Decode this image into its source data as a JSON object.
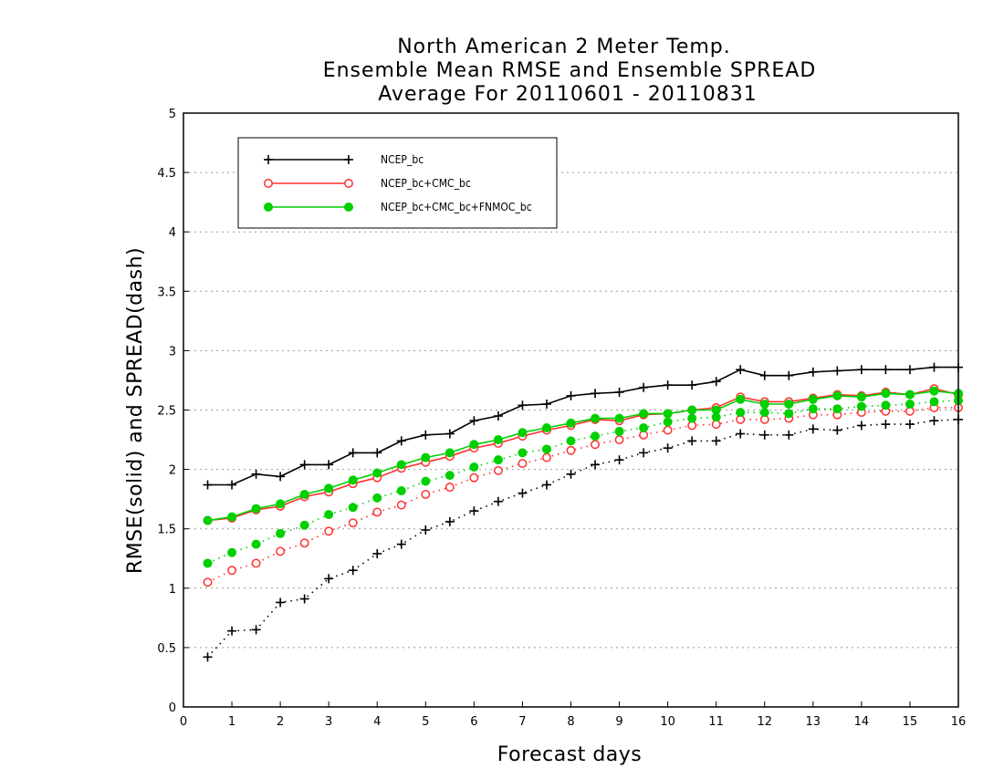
{
  "chart_data": {
    "type": "line",
    "title": [
      "North American 2 Meter Temp.",
      "Ensemble Mean RMSE and Ensemble SPREAD",
      "Average For 20110601 - 20110831"
    ],
    "xlabel": "Forecast days",
    "ylabel": "RMSE(solid) and SPREAD(dash)",
    "xlim": [
      0,
      16
    ],
    "ylim": [
      0,
      5
    ],
    "x_ticks": [
      0,
      1,
      2,
      3,
      4,
      5,
      6,
      7,
      8,
      9,
      10,
      11,
      12,
      13,
      14,
      15,
      16
    ],
    "x_tick_labels": [
      "0",
      "1",
      "2",
      "3",
      "4",
      "5",
      "6",
      "7",
      "8",
      "9",
      "10",
      "11",
      "12",
      "13",
      "14",
      "15",
      "16"
    ],
    "y_ticks": [
      0,
      0.5,
      1,
      1.5,
      2,
      2.5,
      3,
      3.5,
      4,
      4.5,
      5
    ],
    "y_tick_labels": [
      "0",
      "0.5",
      "1",
      "1.5",
      "2",
      "2.5",
      "3",
      "3.5",
      "4",
      "4.5",
      "5"
    ],
    "grid": "horizontal dotted",
    "legend_position": "top-left",
    "x": [
      0.5,
      1,
      1.5,
      2,
      2.5,
      3,
      3.5,
      4,
      4.5,
      5,
      5.5,
      6,
      6.5,
      7,
      7.5,
      8,
      8.5,
      9,
      9.5,
      10,
      10.5,
      11,
      11.5,
      12,
      12.5,
      13,
      13.5,
      14,
      14.5,
      15,
      15.5,
      16
    ],
    "series": [
      {
        "name": "NCEP_bc",
        "color": "#000000",
        "marker": "plus",
        "rmse": [
          1.87,
          1.87,
          1.96,
          1.94,
          2.04,
          2.04,
          2.14,
          2.14,
          2.24,
          2.29,
          2.3,
          2.41,
          2.45,
          2.54,
          2.55,
          2.62,
          2.64,
          2.65,
          2.69,
          2.71,
          2.71,
          2.74,
          2.84,
          2.79,
          2.79,
          2.82,
          2.83,
          2.84,
          2.84,
          2.84,
          2.86,
          2.86
        ],
        "spread": [
          0.42,
          0.64,
          0.65,
          0.88,
          0.91,
          1.08,
          1.15,
          1.29,
          1.37,
          1.49,
          1.56,
          1.65,
          1.73,
          1.8,
          1.87,
          1.96,
          2.04,
          2.08,
          2.14,
          2.18,
          2.24,
          2.24,
          2.3,
          2.29,
          2.29,
          2.34,
          2.33,
          2.37,
          2.38,
          2.38,
          2.41,
          2.42
        ]
      },
      {
        "name": "NCEP_bc+CMC_bc",
        "color": "#ff3030",
        "marker": "open-circle",
        "rmse": [
          1.57,
          1.59,
          1.66,
          1.69,
          1.77,
          1.81,
          1.88,
          1.93,
          2.01,
          2.06,
          2.11,
          2.18,
          2.22,
          2.28,
          2.33,
          2.37,
          2.42,
          2.41,
          2.46,
          2.47,
          2.5,
          2.52,
          2.61,
          2.57,
          2.57,
          2.6,
          2.63,
          2.62,
          2.65,
          2.63,
          2.68,
          2.63
        ],
        "spread": [
          1.05,
          1.15,
          1.21,
          1.31,
          1.38,
          1.48,
          1.55,
          1.64,
          1.7,
          1.79,
          1.85,
          1.93,
          1.99,
          2.05,
          2.1,
          2.16,
          2.21,
          2.25,
          2.29,
          2.33,
          2.37,
          2.38,
          2.42,
          2.42,
          2.43,
          2.46,
          2.46,
          2.48,
          2.49,
          2.49,
          2.52,
          2.52
        ]
      },
      {
        "name": "NCEP_bc+CMC_bc+FNMOC_bc",
        "color": "#00d000",
        "marker": "filled-circle",
        "rmse": [
          1.57,
          1.6,
          1.67,
          1.71,
          1.79,
          1.84,
          1.91,
          1.97,
          2.04,
          2.1,
          2.14,
          2.21,
          2.25,
          2.31,
          2.35,
          2.39,
          2.43,
          2.43,
          2.47,
          2.47,
          2.5,
          2.5,
          2.59,
          2.55,
          2.55,
          2.59,
          2.62,
          2.61,
          2.64,
          2.63,
          2.66,
          2.64
        ],
        "spread": [
          1.21,
          1.3,
          1.37,
          1.46,
          1.53,
          1.62,
          1.68,
          1.76,
          1.82,
          1.9,
          1.95,
          2.02,
          2.08,
          2.14,
          2.17,
          2.24,
          2.28,
          2.32,
          2.35,
          2.4,
          2.43,
          2.44,
          2.48,
          2.48,
          2.47,
          2.51,
          2.51,
          2.53,
          2.54,
          2.55,
          2.57,
          2.58
        ]
      }
    ]
  }
}
